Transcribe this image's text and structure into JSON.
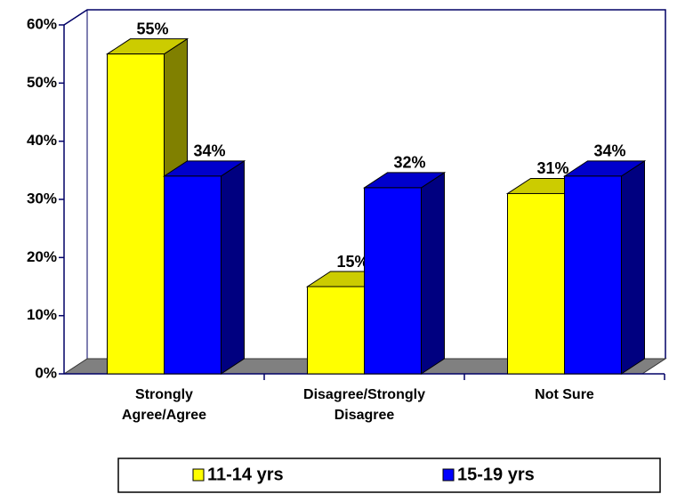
{
  "chart_data": {
    "type": "bar3d",
    "categories": [
      "Strongly Agree/Agree",
      "Disagree/Strongly Disagree",
      "Not Sure"
    ],
    "series": [
      {
        "name": "11-14 yrs",
        "color": "#ffff00",
        "values": [
          55,
          15,
          31
        ],
        "value_labels": [
          "55%",
          "15%",
          "31%"
        ]
      },
      {
        "name": "15-19 yrs",
        "color": "#0000ff",
        "values": [
          34,
          32,
          34
        ],
        "value_labels": [
          "34%",
          "32%",
          "34%"
        ]
      }
    ],
    "ylim": [
      0,
      60
    ],
    "yticks": [
      {
        "value": 0,
        "label": "0%"
      },
      {
        "value": 10,
        "label": "10%"
      },
      {
        "value": 20,
        "label": "20%"
      },
      {
        "value": 30,
        "label": "30%"
      },
      {
        "value": 40,
        "label": "40%"
      },
      {
        "value": 50,
        "label": "50%"
      },
      {
        "value": 60,
        "label": "60%"
      }
    ],
    "legend": "bottom"
  }
}
